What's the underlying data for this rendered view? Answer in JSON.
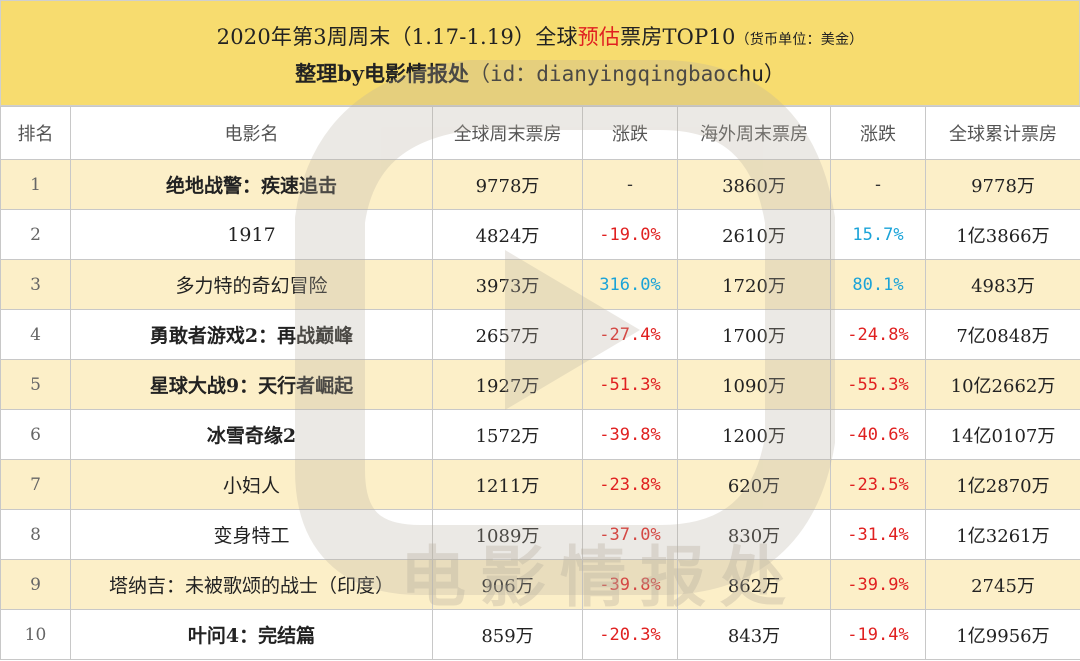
{
  "title": {
    "line1_pre": "2020年第3周周末（1.17-1.19）全球",
    "line1_red": "预估",
    "line1_mid": "票房TOP10",
    "line1_unit": "（货币单位：美金）",
    "line2_pre": "整理by电影情报处",
    "line2_id": "（id：dianyingqingbaochu）"
  },
  "table": {
    "headers": [
      "排名",
      "电影名",
      "全球周末票房",
      "涨跌",
      "海外周末票房",
      "涨跌",
      "全球累计票房"
    ],
    "rows": [
      {
        "rank": "1",
        "name": "绝地战警：疾速追击",
        "global_weekend": "9778万",
        "change1": "-",
        "change1_type": "flat",
        "overseas_weekend": "3860万",
        "change2": "-",
        "change2_type": "flat",
        "total": "9778万"
      },
      {
        "rank": "2",
        "name": "1917",
        "global_weekend": "4824万",
        "change1": "-19.0%",
        "change1_type": "neg",
        "overseas_weekend": "2610万",
        "change2": "15.7%",
        "change2_type": "pos",
        "total": "1亿3866万"
      },
      {
        "rank": "3",
        "name": "多力特的奇幻冒险",
        "global_weekend": "3973万",
        "change1": "316.0%",
        "change1_type": "pos",
        "overseas_weekend": "1720万",
        "change2": "80.1%",
        "change2_type": "pos",
        "total": "4983万"
      },
      {
        "rank": "4",
        "name": "勇敢者游戏2：再战巅峰",
        "global_weekend": "2657万",
        "change1": "-27.4%",
        "change1_type": "neg",
        "overseas_weekend": "1700万",
        "change2": "-24.8%",
        "change2_type": "neg",
        "total": "7亿0848万"
      },
      {
        "rank": "5",
        "name": "星球大战9：天行者崛起",
        "global_weekend": "1927万",
        "change1": "-51.3%",
        "change1_type": "neg",
        "overseas_weekend": "1090万",
        "change2": "-55.3%",
        "change2_type": "neg",
        "total": "10亿2662万"
      },
      {
        "rank": "6",
        "name": "冰雪奇缘2",
        "global_weekend": "1572万",
        "change1": "-39.8%",
        "change1_type": "neg",
        "overseas_weekend": "1200万",
        "change2": "-40.6%",
        "change2_type": "neg",
        "total": "14亿0107万"
      },
      {
        "rank": "7",
        "name": "小妇人",
        "global_weekend": "1211万",
        "change1": "-23.8%",
        "change1_type": "neg",
        "overseas_weekend": "620万",
        "change2": "-23.5%",
        "change2_type": "neg",
        "total": "1亿2870万"
      },
      {
        "rank": "8",
        "name": "变身特工",
        "global_weekend": "1089万",
        "change1": "-37.0%",
        "change1_type": "neg",
        "overseas_weekend": "830万",
        "change2": "-31.4%",
        "change2_type": "neg",
        "total": "1亿3261万"
      },
      {
        "rank": "9",
        "name": "塔纳吉：未被歌颂的战士（印度）",
        "global_weekend": "906万",
        "change1": "-39.8%",
        "change1_type": "neg",
        "overseas_weekend": "862万",
        "change2": "-39.9%",
        "change2_type": "neg",
        "total": "2745万"
      },
      {
        "rank": "10",
        "name": "叶问4：完结篇",
        "global_weekend": "859万",
        "change1": "-20.3%",
        "change1_type": "neg",
        "overseas_weekend": "843万",
        "change2": "-19.4%",
        "change2_type": "neg",
        "total": "1亿9956万"
      }
    ]
  },
  "watermark": {
    "text": "电影情报处",
    "icon": "play-logo-icon",
    "color": "#d8d0c0"
  },
  "colors": {
    "title_bg": "#f7dc6f",
    "row_alt_bg": "#fcefc8",
    "negative": "#e02020",
    "positive": "#1aa3d8"
  }
}
